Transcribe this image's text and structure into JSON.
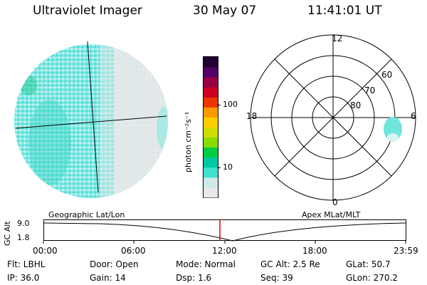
{
  "header": {
    "title": "Ultraviolet Imager",
    "date": "30 May 07",
    "time": "11:41:01 UT"
  },
  "colorbar": {
    "label": "photon cm⁻²s⁻¹",
    "ticks": [
      "100",
      "10"
    ],
    "scale": "log",
    "colors": [
      "#e8e8e8",
      "#cfe8e8",
      "#40e0d0",
      "#00c8a0",
      "#00cc44",
      "#88dd00",
      "#ccdd00",
      "#ffcc00",
      "#ff9900",
      "#ee3300",
      "#cc0022",
      "#990044",
      "#550066",
      "#220033"
    ]
  },
  "polar_plot": {
    "clock_labels": [
      "12",
      "18",
      "6",
      "0"
    ],
    "lat_labels": [
      "60",
      "70",
      "80"
    ]
  },
  "timeline": {
    "left_label": "Geographic Lat/Lon",
    "right_label": "Apex MLat/MLT",
    "y_axis_label": "GC Alt",
    "y_ticks": [
      "9.0",
      "1.8"
    ],
    "x_ticks": [
      "00:00",
      "06:00",
      "12:00",
      "18:00",
      "23:59"
    ],
    "marker_color": "#dd0000"
  },
  "info": {
    "filter": "Flt: LBHL",
    "door": "Door: Open",
    "mode": "Mode: Normal",
    "gc_alt": "GC Alt: 2.5 Re",
    "glat": "GLat:  50.7",
    "ip": "IP: 36.0",
    "gain": "Gain: 14",
    "dsp": "Dsp:     1.6",
    "seq": "Seq: 39",
    "glon": "GLon: 270.2"
  },
  "colors": {
    "accent_cyan": "#40e0d0",
    "grey": "#d8d8d8"
  }
}
